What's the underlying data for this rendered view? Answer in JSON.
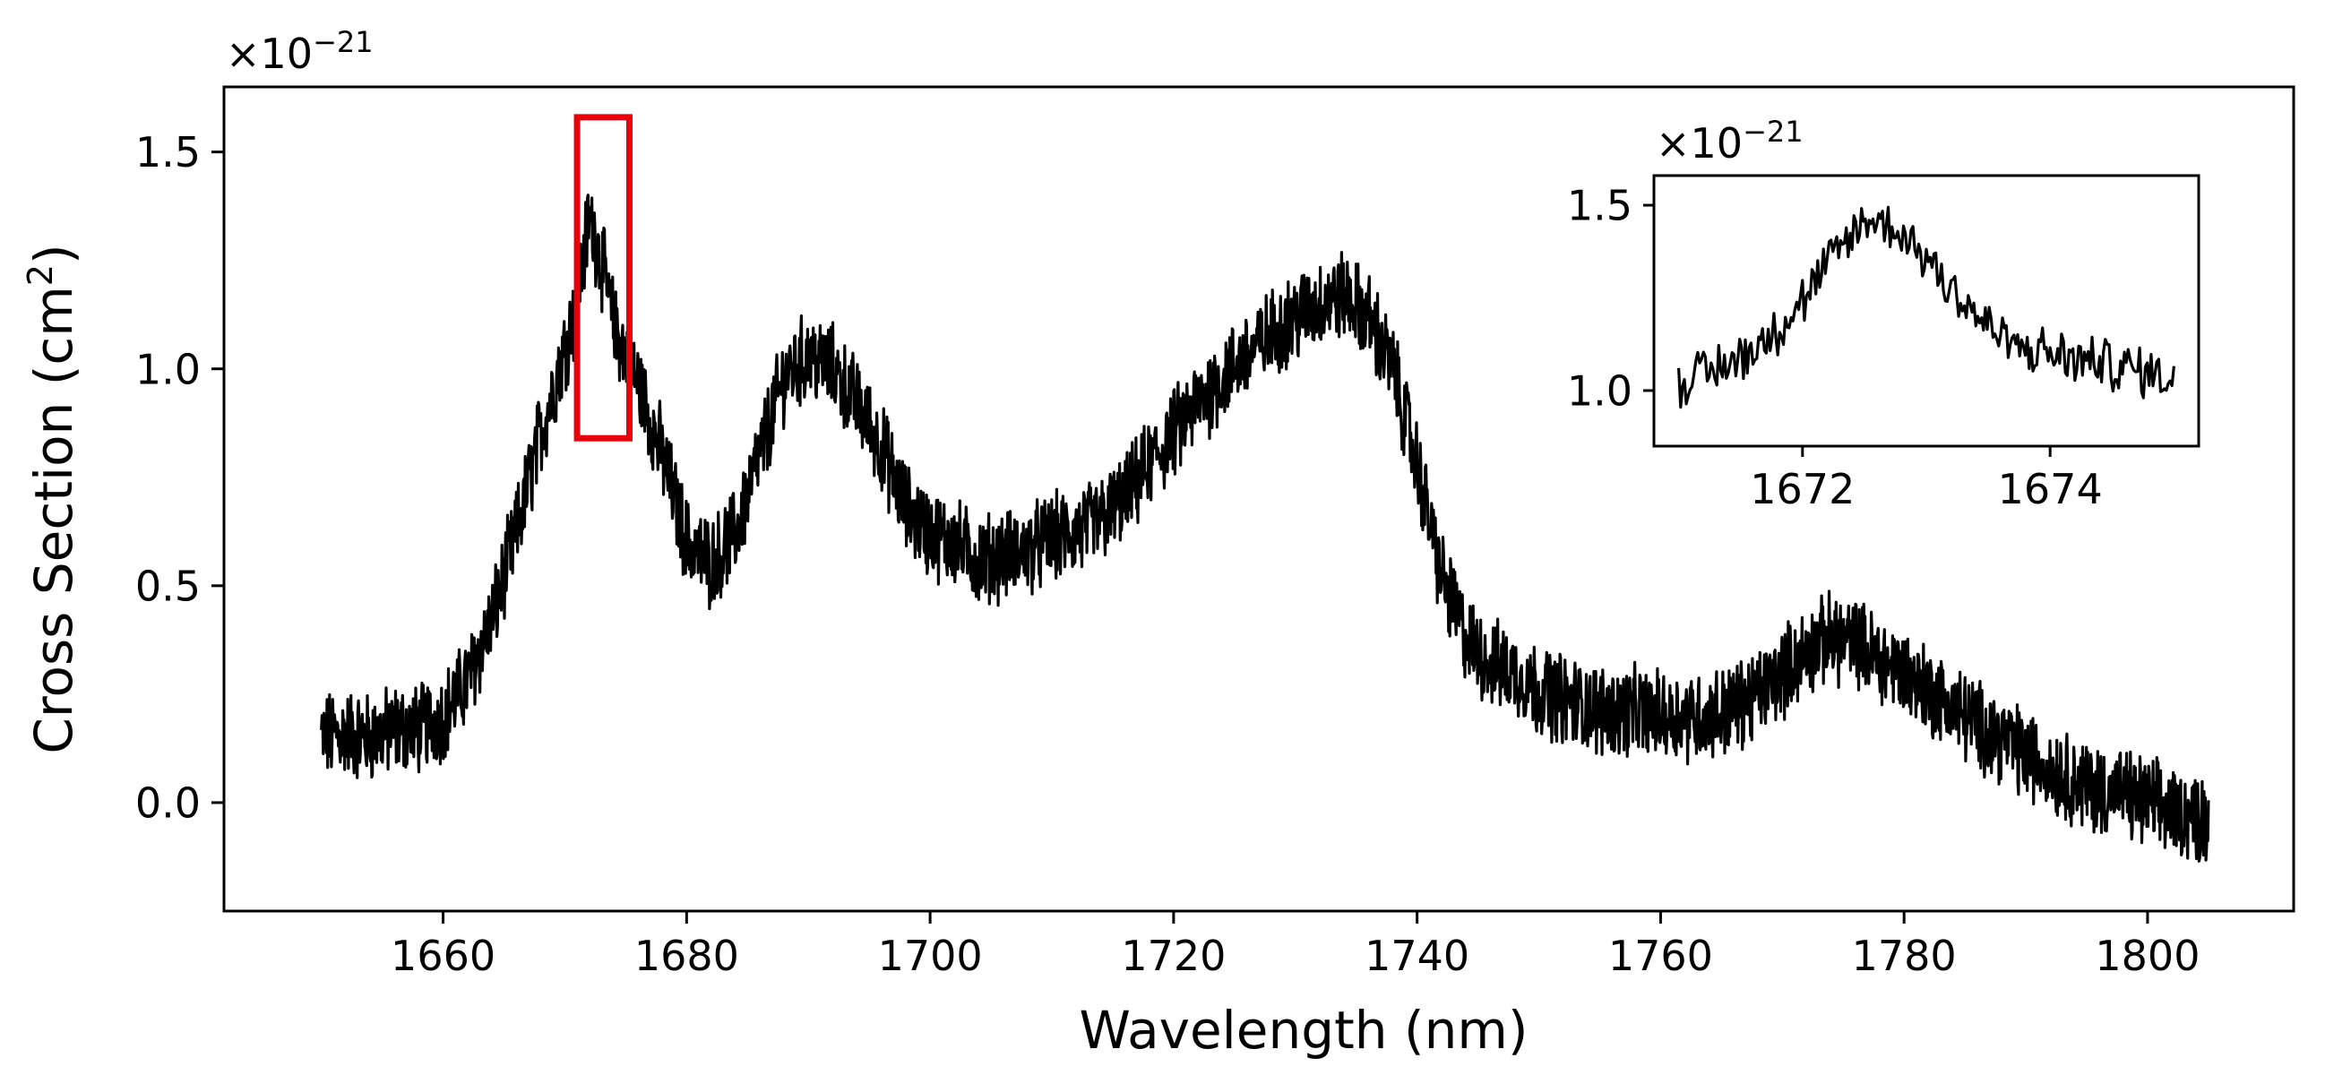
{
  "chart_data": [
    {
      "type": "line",
      "panel": "main",
      "xlabel": "Wavelength (nm)",
      "ylabel": "Cross Section (cm",
      "ylabel_sup": "2",
      "ylabel_close": ")",
      "scale_prefix": "×10",
      "scale_exponent": "−21",
      "xlim": [
        1642,
        1812
      ],
      "ylim": [
        -0.25,
        1.65
      ],
      "xticks": [
        1660,
        1680,
        1700,
        1720,
        1740,
        1760,
        1780,
        1800
      ],
      "xtick_labels": [
        "1660",
        "1680",
        "1700",
        "1720",
        "1740",
        "1760",
        "1780",
        "1800"
      ],
      "yticks": [
        0.0,
        0.5,
        1.0,
        1.5
      ],
      "ytick_labels": [
        "0.0",
        "0.5",
        "1.0",
        "1.5"
      ],
      "series": [
        {
          "name": "cross_section",
          "color": "#000000",
          "noise_amplitude": 0.09,
          "x": [
            1650,
            1652,
            1654,
            1656,
            1658,
            1660,
            1662,
            1664,
            1666,
            1668,
            1670,
            1671,
            1672,
            1673,
            1674,
            1676,
            1678,
            1680,
            1682,
            1684,
            1686,
            1688,
            1690,
            1692,
            1694,
            1696,
            1698,
            1700,
            1702,
            1704,
            1706,
            1708,
            1710,
            1712,
            1714,
            1716,
            1718,
            1720,
            1722,
            1724,
            1726,
            1728,
            1730,
            1732,
            1734,
            1736,
            1738,
            1740,
            1742,
            1744,
            1746,
            1748,
            1750,
            1752,
            1754,
            1756,
            1758,
            1760,
            1762,
            1764,
            1766,
            1768,
            1770,
            1772,
            1774,
            1776,
            1778,
            1780,
            1782,
            1784,
            1786,
            1788,
            1790,
            1792,
            1794,
            1796,
            1798,
            1800,
            1802,
            1804,
            1805
          ],
          "y": [
            0.15,
            0.16,
            0.15,
            0.17,
            0.17,
            0.2,
            0.28,
            0.42,
            0.62,
            0.85,
            1.05,
            1.15,
            1.35,
            1.25,
            1.1,
            0.97,
            0.8,
            0.6,
            0.55,
            0.62,
            0.8,
            0.98,
            1.03,
            1.0,
            0.92,
            0.82,
            0.68,
            0.62,
            0.6,
            0.56,
            0.57,
            0.58,
            0.61,
            0.62,
            0.65,
            0.7,
            0.78,
            0.85,
            0.92,
            0.98,
            1.03,
            1.08,
            1.12,
            1.15,
            1.17,
            1.12,
            1.0,
            0.78,
            0.52,
            0.38,
            0.32,
            0.3,
            0.26,
            0.24,
            0.22,
            0.21,
            0.21,
            0.2,
            0.2,
            0.2,
            0.22,
            0.25,
            0.3,
            0.35,
            0.38,
            0.37,
            0.33,
            0.3,
            0.26,
            0.22,
            0.18,
            0.15,
            0.11,
            0.08,
            0.05,
            0.03,
            0.02,
            0.0,
            -0.02,
            -0.03,
            -0.04
          ]
        }
      ],
      "highlight_box": {
        "x_range": [
          1671,
          1675.3
        ],
        "y_range": [
          0.84,
          1.58
        ],
        "color": "#e8000b"
      }
    },
    {
      "type": "line",
      "panel": "inset",
      "scale_prefix": "×10",
      "scale_exponent": "−21",
      "xlim": [
        1670.8,
        1675.2
      ],
      "ylim": [
        0.85,
        1.58
      ],
      "xticks": [
        1672,
        1674
      ],
      "xtick_labels": [
        "1672",
        "1674"
      ],
      "yticks": [
        1.0,
        1.5
      ],
      "ytick_labels": [
        "1.0",
        "1.5"
      ],
      "series": [
        {
          "name": "cross_section_zoom",
          "color": "#000000",
          "noise_amplitude": 0.06,
          "x": [
            1671.0,
            1671.25,
            1671.5,
            1671.75,
            1672.0,
            1672.25,
            1672.5,
            1672.75,
            1673.0,
            1673.25,
            1673.5,
            1673.75,
            1674.0,
            1674.25,
            1674.5,
            1674.75,
            1675.0
          ],
          "y": [
            1.02,
            1.05,
            1.09,
            1.15,
            1.24,
            1.36,
            1.46,
            1.44,
            1.36,
            1.26,
            1.17,
            1.11,
            1.1,
            1.08,
            1.07,
            1.05,
            1.04
          ]
        }
      ]
    }
  ]
}
